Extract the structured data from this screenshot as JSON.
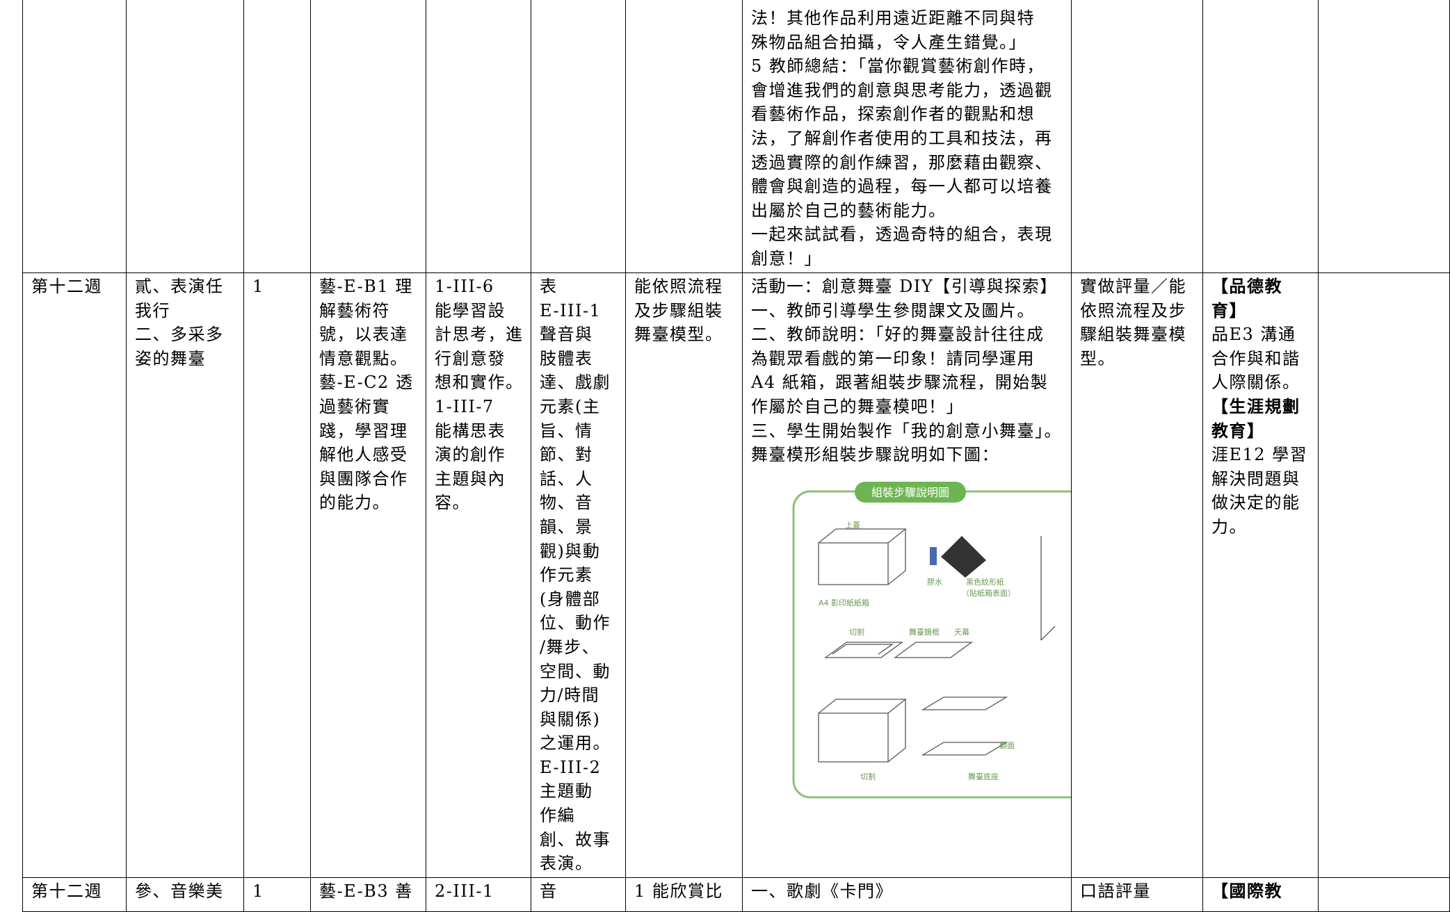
{
  "table": {
    "rows": [
      {
        "activity": [
          "法！其他作品利用遠近距離不同與特",
          "殊物品組合拍攝，令人產生錯覺。」",
          "5 教師總結：「當你觀賞藝術創作時，",
          "會增進我們的創意與思考能力，透過觀",
          "看藝術作品，探索創作者的觀點和想",
          "法，了解創作者使用的工具和技法，再",
          "透過實際的創作練習，那麼藉由觀察、",
          "體會與創造的過程，每一人都可以培養",
          "出屬於自己的藝術能力。",
          "一起來試試看，透過奇特的組合，表現",
          "創意！」"
        ]
      },
      {
        "week": [
          "第十二週"
        ],
        "unit": [
          "貳、表演任",
          "我行",
          "二、多采多",
          "姿的舞臺"
        ],
        "hours": [
          "1"
        ],
        "competency": [
          "藝-E-B1 理",
          "解藝術符",
          "號，以表達",
          "情意觀點。",
          "藝-E-C2 透",
          "過藝術實",
          "踐，學習理",
          "解他人感受",
          "與團隊合作",
          "的能力。"
        ],
        "performance": [
          "1-III-6",
          "能學習設",
          "計思考，進",
          "行創意發",
          "想和實作。",
          "1-III-7",
          "能構思表",
          "演的創作",
          "主題與內",
          "容。"
        ],
        "content": [
          "表",
          "E-III-1",
          "聲音與",
          "肢體表",
          "達、戲劇",
          "元素(主",
          "旨、情",
          "節、對",
          "話、人",
          "物、音",
          "韻、景",
          "觀)與動",
          "作元素",
          "(身體部",
          "位、動作",
          "/舞步、",
          "空間、動",
          "力/時間",
          "與關係)",
          "之運用。",
          "E-III-2",
          "主題動",
          "作編",
          "創、故事",
          "表演。"
        ],
        "objective": [
          "能依照流程",
          "及步驟組裝",
          "舞臺模型。"
        ],
        "activity": [
          "活動一：創意舞臺 DIY【引導與探索】",
          "一、教師引導學生參閱課文及圖片。",
          "二、教師說明：「好的舞臺設計往往成",
          "為觀眾看戲的第一印象！請同學運用",
          "A4 紙箱，跟著組裝步驟流程，開始製",
          "作屬於自己的舞臺模吧！」",
          "三、學生開始製作「我的創意小舞臺」。",
          "舞臺模形組裝步驟說明如下圖："
        ],
        "assessment": [
          "實做評量／能",
          "依照流程及步",
          "驟組裝舞臺模",
          "型。"
        ],
        "issues": [
          {
            "text": "【品德教",
            "bold": true
          },
          {
            "text": "育】",
            "bold": true
          },
          {
            "text": "品E3 溝通"
          },
          {
            "text": "合作與和諧"
          },
          {
            "text": "人際關係。"
          },
          {
            "text": "【生涯規劃",
            "bold": true
          },
          {
            "text": "教育】",
            "bold": true
          },
          {
            "text": "涯E12 學習"
          },
          {
            "text": "解決問題與"
          },
          {
            "text": "做決定的能"
          },
          {
            "text": "力。"
          }
        ]
      },
      {
        "week": [
          "第十二週"
        ],
        "unit": [
          "參、音樂美"
        ],
        "hours": [
          "1"
        ],
        "competency": [
          "藝-E-B3 善"
        ],
        "performance": [
          "2-III-1"
        ],
        "content": [
          "音"
        ],
        "objective": [
          "1 能欣賞比"
        ],
        "activity": [
          "一、歌劇《卡門》"
        ],
        "assessment": [
          "口語評量"
        ],
        "issues": [
          {
            "text": "【國際教",
            "bold": true
          }
        ]
      }
    ]
  },
  "figure": {
    "title": "組裝步驟說明圖",
    "labels": [
      "上蓋",
      "A4 影印紙紙箱",
      "膠水",
      "黑色紋形紙",
      "（貼紙箱表面）",
      "切割",
      "舞臺鏡框",
      "天幕",
      "翻面",
      "切割",
      "舞臺底座"
    ]
  }
}
